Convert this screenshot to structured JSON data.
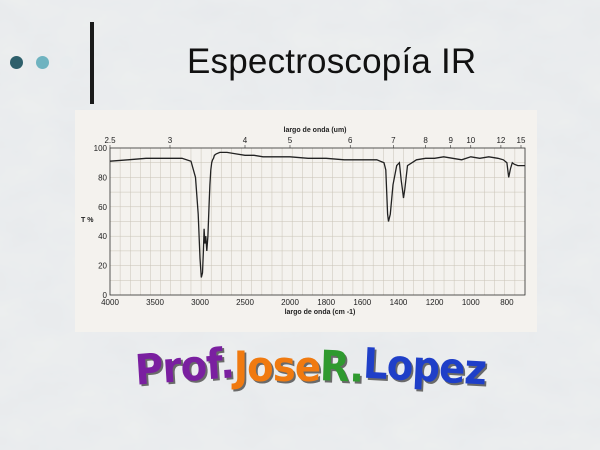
{
  "slide": {
    "title": "Espectroscopía IR"
  },
  "author_parts": [
    "Prof. ",
    "Jose ",
    "R. ",
    "Lopez"
  ],
  "chart_data": {
    "type": "line",
    "title": "",
    "top_axis_label": "largo de onda (um)",
    "top_ticks": [
      "2.5",
      "3",
      "4",
      "5",
      "6",
      "7",
      "8",
      "9",
      "10",
      "12",
      "15"
    ],
    "xlabel": "largo de onda (cm -1)",
    "x_ticks": [
      "4000",
      "3500",
      "3000",
      "2500",
      "2000",
      "1800",
      "1600",
      "1400",
      "1200",
      "1000",
      "800"
    ],
    "ylabel": "T %",
    "y_ticks": [
      "100",
      "80",
      "60",
      "40",
      "20",
      "0"
    ],
    "ylim": [
      0,
      100
    ],
    "grid": true,
    "series": [
      {
        "x": [
          4000,
          3800,
          3600,
          3400,
          3200,
          3100,
          3050,
          3020,
          3000,
          2985,
          2972,
          2962,
          2955,
          2945,
          2935,
          2925,
          2912,
          2900,
          2890,
          2880,
          2870,
          2860,
          2850,
          2840,
          2820,
          2780,
          2700,
          2600,
          2500,
          2450,
          2400,
          2300,
          2200,
          2100,
          2000,
          1900,
          1800,
          1700,
          1600,
          1520,
          1480,
          1470,
          1465,
          1460,
          1455,
          1445,
          1430,
          1410,
          1395,
          1385,
          1378,
          1372,
          1365,
          1350,
          1300,
          1250,
          1200,
          1150,
          1100,
          1050,
          1000,
          950,
          900,
          850,
          820,
          800,
          790,
          780,
          770,
          760,
          740,
          720,
          700
        ],
        "y": [
          91,
          92,
          93,
          93,
          93,
          91,
          80,
          55,
          25,
          12,
          15,
          30,
          45,
          35,
          40,
          30,
          40,
          60,
          75,
          85,
          90,
          92,
          93,
          95,
          96,
          97,
          97,
          96,
          95,
          95,
          95,
          94,
          94,
          94,
          94,
          93,
          93,
          92,
          92,
          92,
          90,
          85,
          70,
          55,
          50,
          55,
          75,
          88,
          90,
          78,
          72,
          66,
          72,
          88,
          92,
          93,
          93,
          94,
          93,
          92,
          94,
          93,
          94,
          93,
          92,
          90,
          80,
          86,
          90,
          89,
          88,
          88,
          88
        ]
      }
    ]
  }
}
